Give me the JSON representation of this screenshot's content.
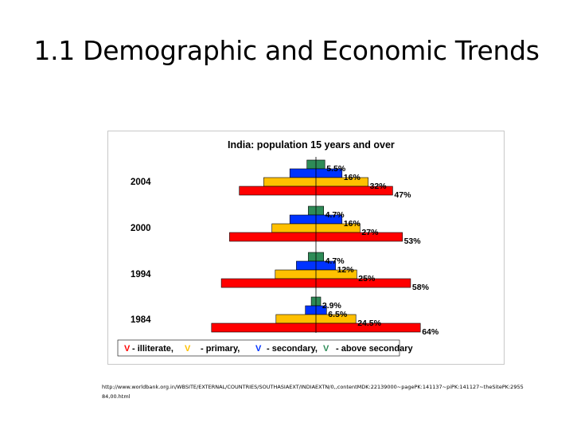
{
  "slide": {
    "title": "1.1 Demographic and Economic Trends",
    "source_url": "http://www.worldbank.org.in/WBSITE/EXTERNAL/COUNTRIES/SOUTHASIAEXT/INDIAEXTN/0,,contentMDK:22139000~pagePK:141137~piPK:141127~theSitePK:295584,00.html"
  },
  "colors": {
    "illiterate": "#ff0000",
    "primary": "#ffc000",
    "secondary": "#0033ff",
    "above_secondary": "#2e8b57",
    "panel_background": "#ffffff",
    "legend_background": "#ffffff"
  },
  "chart_data": {
    "type": "bar",
    "title": "India: population 15 years and over",
    "categories": [
      "2004",
      "2000",
      "1994",
      "1984"
    ],
    "series": [
      {
        "key": "above_secondary",
        "values": [
          5.5,
          4.7,
          4.7,
          2.9
        ],
        "labels": [
          "5.5%",
          "4.7%",
          "4.7%",
          "2.9%"
        ]
      },
      {
        "key": "secondary",
        "values": [
          16,
          16,
          12,
          6.5
        ],
        "labels": [
          "16%",
          "16%",
          "12%",
          "6.5%"
        ]
      },
      {
        "key": "primary",
        "values": [
          32,
          27,
          25,
          24.5
        ],
        "labels": [
          "32%",
          "27%",
          "25%",
          "24.5%"
        ]
      },
      {
        "key": "illiterate",
        "values": [
          47,
          53,
          58,
          64
        ],
        "labels": [
          "47%",
          "53%",
          "58%",
          "64%"
        ]
      }
    ],
    "legend": [
      {
        "key": "illiterate",
        "symbol": "V",
        "text": "- illiterate,"
      },
      {
        "key": "primary",
        "symbol": "V",
        "text": "- primary,"
      },
      {
        "key": "secondary",
        "symbol": "V",
        "text": "- secondary,"
      },
      {
        "key": "above_secondary",
        "symbol": "V",
        "text": "- above secondary"
      }
    ],
    "legend_position": "bottom",
    "xlim": [
      0,
      64
    ],
    "grid": false
  }
}
